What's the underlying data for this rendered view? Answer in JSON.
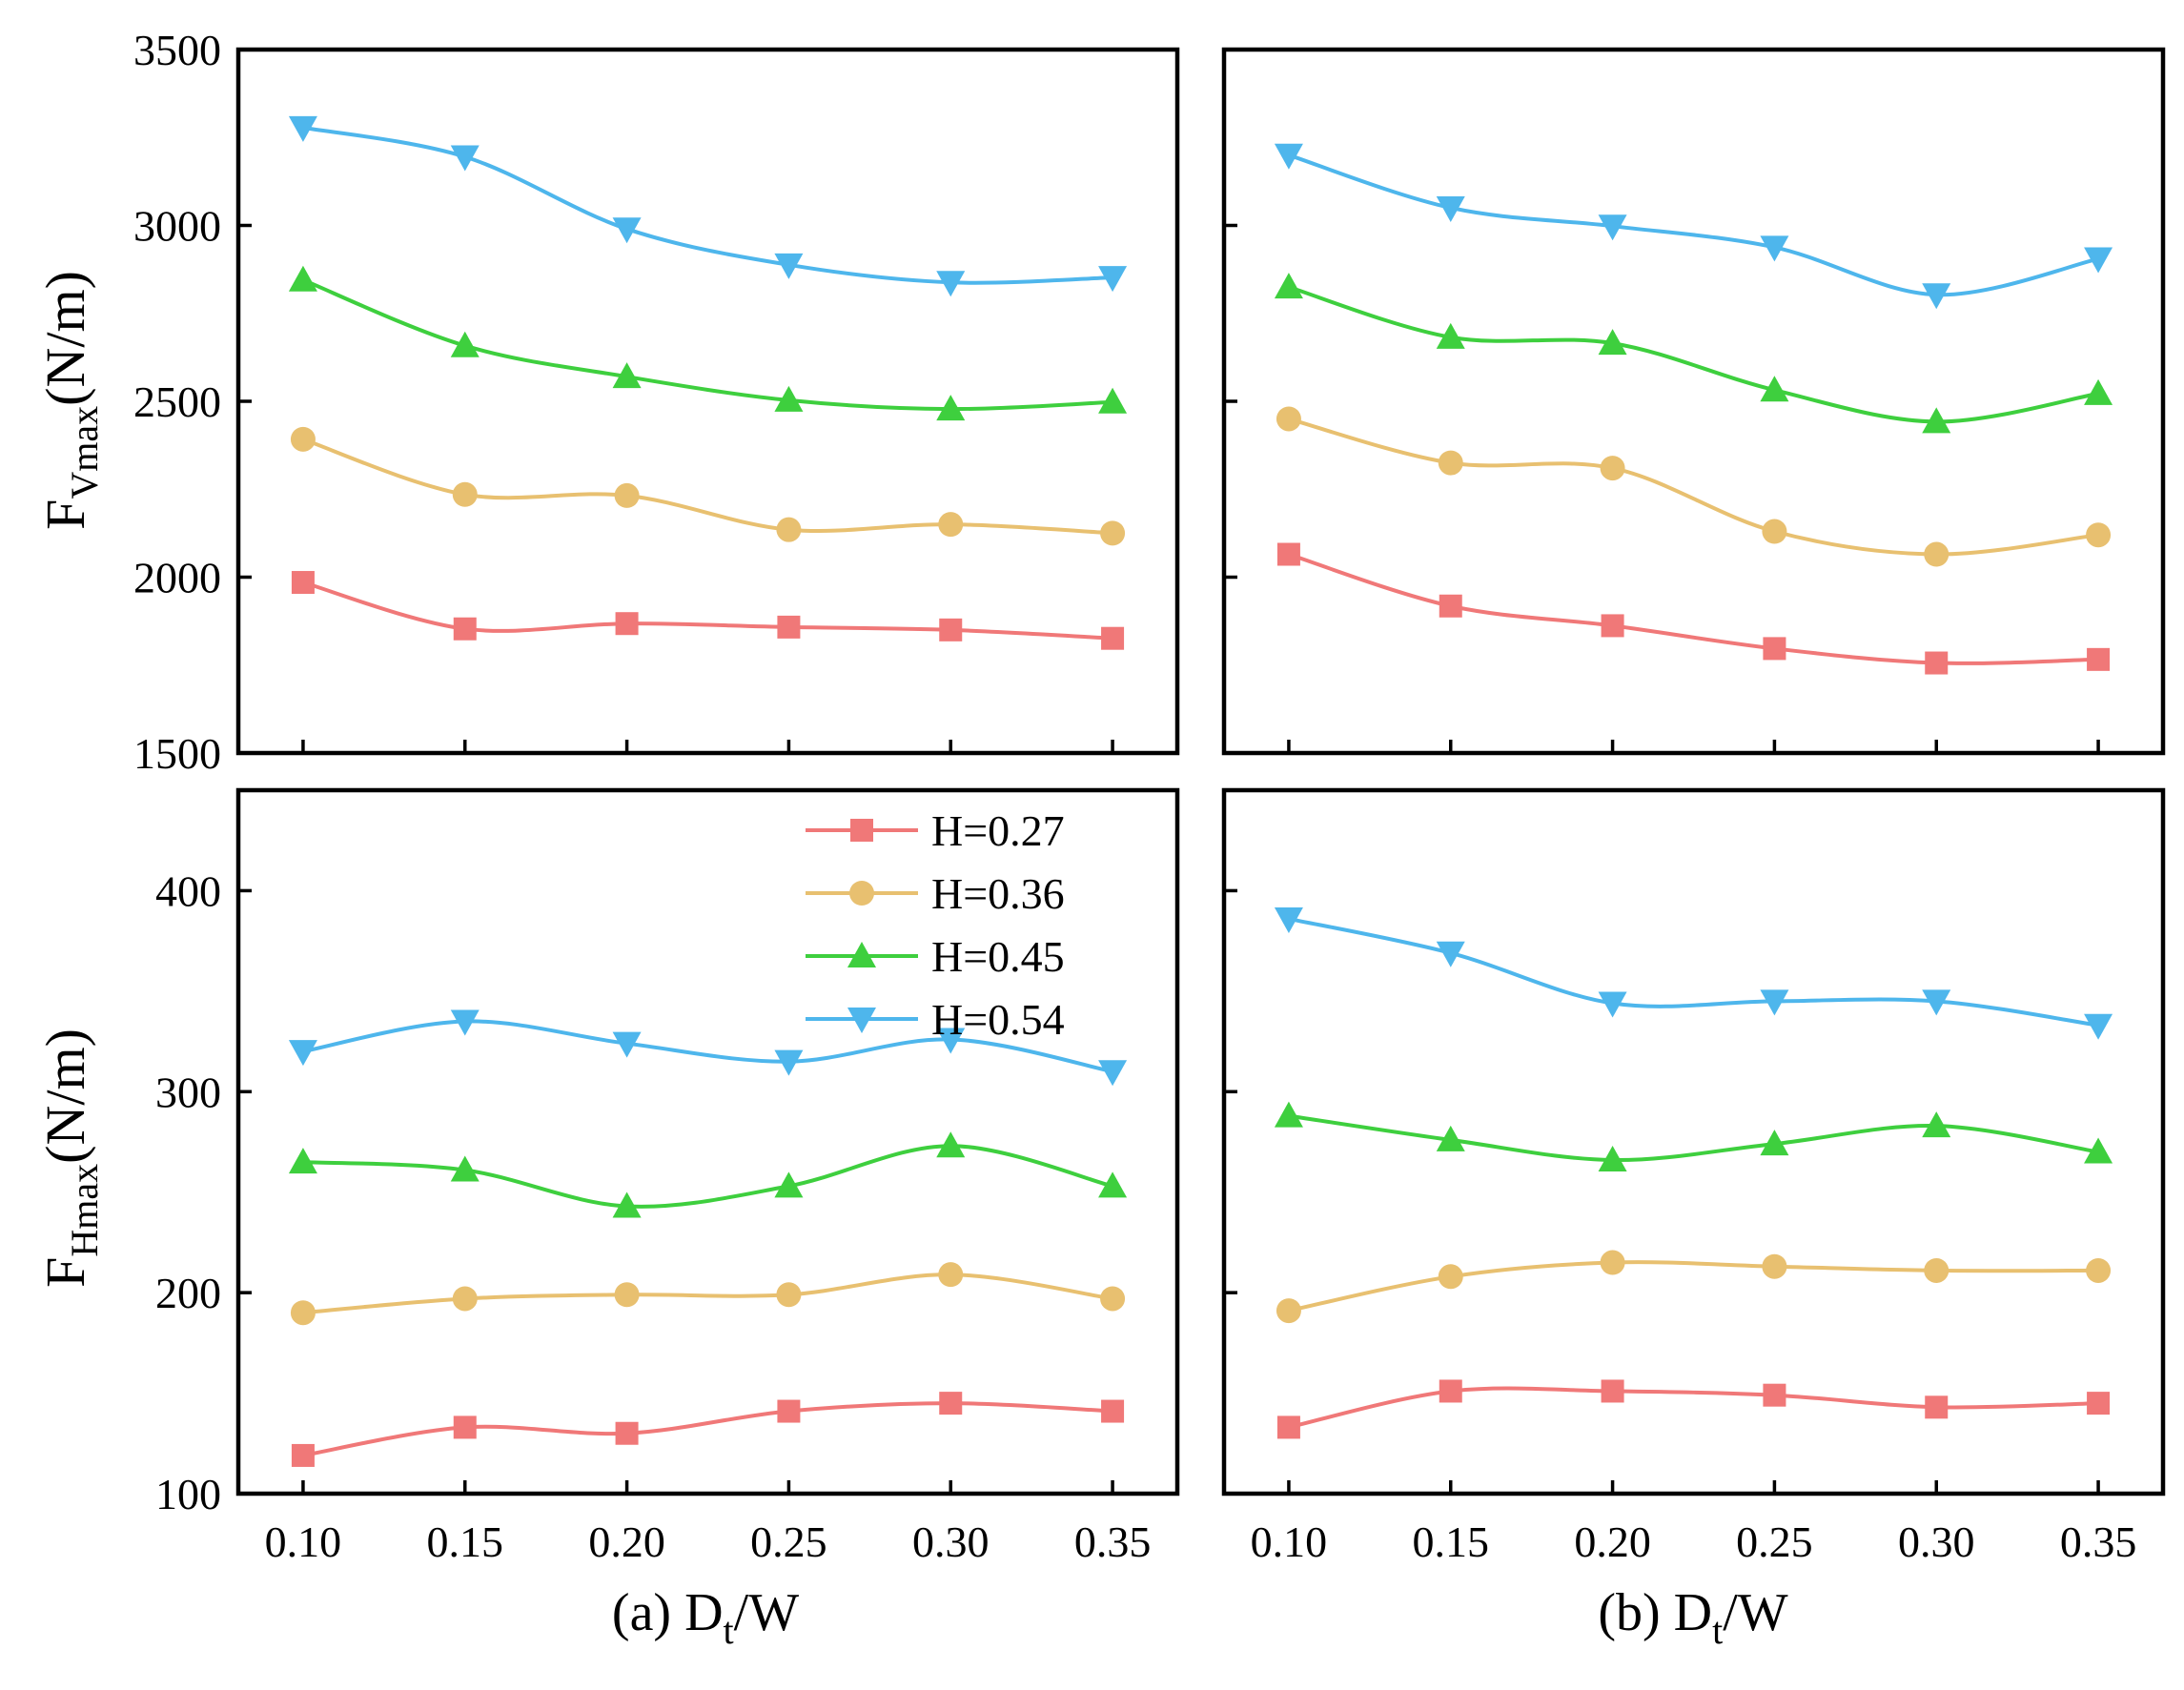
{
  "chart_data": [
    {
      "panel": "top-left",
      "type": "line",
      "x": [
        0.1,
        0.15,
        0.2,
        0.25,
        0.3,
        0.35
      ],
      "xlim": [
        0.08,
        0.37
      ],
      "ylim": [
        1500,
        3500
      ],
      "yticks": [
        1500,
        2000,
        2500,
        3000,
        3500
      ],
      "ylabel": {
        "main": "F",
        "sub": "Vmax",
        "unit": "(N/m)"
      },
      "series": [
        {
          "name": "H=0.27",
          "values": [
            1985,
            1853,
            1868,
            1858,
            1850,
            1826
          ]
        },
        {
          "name": "H=0.36",
          "values": [
            2392,
            2235,
            2232,
            2135,
            2150,
            2125
          ]
        },
        {
          "name": "H=0.45",
          "values": [
            2845,
            2658,
            2570,
            2503,
            2478,
            2498
          ]
        },
        {
          "name": "H=0.54",
          "values": [
            3278,
            3195,
            2990,
            2888,
            2838,
            2852
          ]
        }
      ]
    },
    {
      "panel": "top-right",
      "type": "line",
      "x": [
        0.1,
        0.15,
        0.2,
        0.25,
        0.3,
        0.35
      ],
      "xlim": [
        0.08,
        0.37
      ],
      "ylim": [
        1500,
        3500
      ],
      "yticks": [
        1500,
        2000,
        2500,
        3000,
        3500
      ],
      "series": [
        {
          "name": "H=0.27",
          "values": [
            2065,
            1918,
            1862,
            1797,
            1756,
            1766
          ]
        },
        {
          "name": "H=0.36",
          "values": [
            2450,
            2325,
            2310,
            2130,
            2065,
            2120
          ]
        },
        {
          "name": "H=0.45",
          "values": [
            2825,
            2682,
            2665,
            2532,
            2442,
            2522
          ]
        },
        {
          "name": "H=0.54",
          "values": [
            3200,
            3050,
            2998,
            2938,
            2803,
            2905
          ]
        }
      ]
    },
    {
      "panel": "bottom-left",
      "type": "line",
      "x": [
        0.1,
        0.15,
        0.2,
        0.25,
        0.3,
        0.35
      ],
      "xlim": [
        0.08,
        0.37
      ],
      "ylim": [
        100,
        450
      ],
      "yticks": [
        100,
        200,
        300,
        400
      ],
      "xticks": [
        0.1,
        0.15,
        0.2,
        0.25,
        0.3,
        0.35
      ],
      "xtick_labels": [
        "0.10",
        "0.15",
        "0.20",
        "0.25",
        "0.30",
        "0.35"
      ],
      "ylabel": {
        "main": "F",
        "sub": "Hmax",
        "unit": "(N/m)"
      },
      "xlabel": {
        "prefix": "(a) D",
        "sub": "t",
        "suffix": "/W"
      },
      "series": [
        {
          "name": "H=0.27",
          "values": [
            119,
            133,
            130,
            141,
            145,
            141
          ]
        },
        {
          "name": "H=0.36",
          "values": [
            190,
            197,
            199,
            199,
            209,
            197
          ]
        },
        {
          "name": "H=0.45",
          "values": [
            265,
            261,
            243,
            253,
            273,
            253
          ]
        },
        {
          "name": "H=0.54",
          "values": [
            320,
            335,
            324,
            315,
            326,
            310
          ]
        }
      ]
    },
    {
      "panel": "bottom-right",
      "type": "line",
      "x": [
        0.1,
        0.15,
        0.2,
        0.25,
        0.3,
        0.35
      ],
      "xlim": [
        0.08,
        0.37
      ],
      "ylim": [
        100,
        450
      ],
      "yticks": [
        100,
        200,
        300,
        400
      ],
      "xticks": [
        0.1,
        0.15,
        0.2,
        0.25,
        0.3,
        0.35
      ],
      "xtick_labels": [
        "0.10",
        "0.15",
        "0.20",
        "0.25",
        "0.30",
        "0.35"
      ],
      "xlabel": {
        "prefix": "(b) D",
        "sub": "t",
        "suffix": "/W"
      },
      "series": [
        {
          "name": "H=0.27",
          "values": [
            133,
            151,
            151,
            149,
            143,
            145
          ]
        },
        {
          "name": "H=0.36",
          "values": [
            191,
            208,
            215,
            213,
            211,
            211
          ]
        },
        {
          "name": "H=0.45",
          "values": [
            288,
            276,
            266,
            274,
            283,
            270
          ]
        },
        {
          "name": "H=0.54",
          "values": [
            386,
            369,
            344,
            345,
            345,
            333
          ]
        }
      ]
    }
  ],
  "legend": {
    "placement": "upper-left of bottom-left panel",
    "entries": [
      {
        "label": "H=0.27",
        "marker": "square",
        "color": "#f07878"
      },
      {
        "label": "H=0.36",
        "marker": "circle",
        "color": "#e8c070"
      },
      {
        "label": "H=0.45",
        "marker": "triangle-up",
        "color": "#3ecf3e"
      },
      {
        "label": "H=0.54",
        "marker": "triangle-down",
        "color": "#4eb6ec"
      }
    ]
  }
}
